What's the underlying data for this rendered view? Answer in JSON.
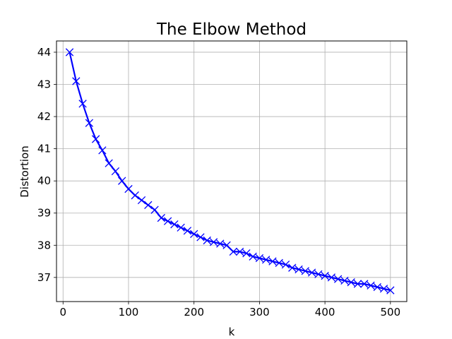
{
  "chart_data": {
    "type": "line",
    "title": "The Elbow Method",
    "xlabel": "k",
    "ylabel": "Distortion",
    "xlim": [
      -10,
      525
    ],
    "ylim": [
      36.25,
      44.35
    ],
    "xticks": [
      0,
      100,
      200,
      300,
      400,
      500
    ],
    "yticks": [
      37,
      38,
      39,
      40,
      41,
      42,
      43,
      44
    ],
    "grid": true,
    "line_color": "#0000ff",
    "marker": "x",
    "series": [
      {
        "x": [
          10,
          20,
          30,
          40,
          50,
          60,
          70,
          80,
          90,
          100,
          110,
          120,
          130,
          140,
          150,
          160,
          170,
          180,
          190,
          200,
          210,
          220,
          230,
          240,
          250,
          260,
          270,
          280,
          290,
          300,
          310,
          320,
          330,
          340,
          350,
          360,
          370,
          380,
          390,
          400,
          410,
          420,
          430,
          440,
          450,
          460,
          470,
          480,
          490,
          500
        ],
        "values": [
          44.0,
          43.1,
          42.4,
          41.8,
          41.3,
          40.95,
          40.55,
          40.3,
          40.0,
          39.75,
          39.55,
          39.4,
          39.25,
          39.1,
          38.85,
          38.75,
          38.65,
          38.55,
          38.45,
          38.35,
          38.25,
          38.15,
          38.1,
          38.05,
          38.0,
          37.8,
          37.8,
          37.75,
          37.65,
          37.6,
          37.55,
          37.5,
          37.45,
          37.4,
          37.3,
          37.25,
          37.2,
          37.15,
          37.1,
          37.05,
          37.0,
          36.95,
          36.9,
          36.85,
          36.8,
          36.8,
          36.75,
          36.7,
          36.65,
          36.6
        ]
      }
    ]
  }
}
